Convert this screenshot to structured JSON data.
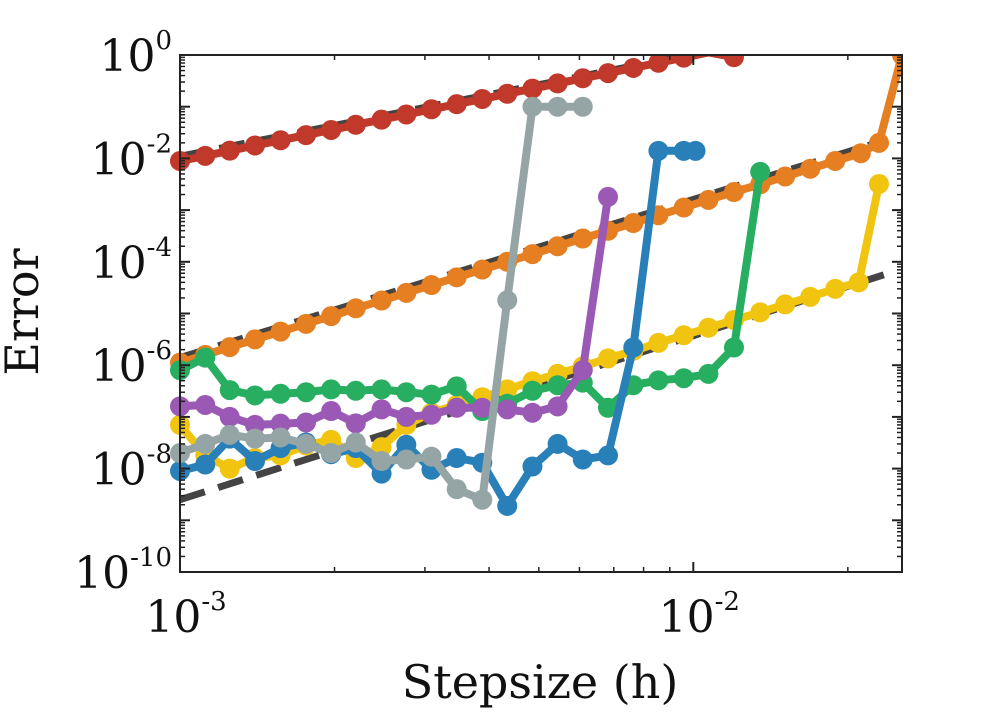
{
  "chart_data": {
    "type": "line",
    "title": "",
    "xlabel": "Stepsize (h)",
    "ylabel": "Error",
    "xscale": "log",
    "yscale": "log",
    "xlim": [
      0.001,
      0.0255
    ],
    "ylim": [
      1e-10,
      1
    ],
    "grid": false,
    "x_ticks": [
      {
        "value": 0.001,
        "base": "10",
        "exp": "-3"
      },
      {
        "value": 0.01,
        "base": "10",
        "exp": "-2"
      }
    ],
    "y_ticks": [
      {
        "value": 1e-10,
        "base": "10",
        "exp": "-10"
      },
      {
        "value": 1e-08,
        "base": "10",
        "exp": "-8"
      },
      {
        "value": 1e-06,
        "base": "10",
        "exp": "-6"
      },
      {
        "value": 0.0001,
        "base": "10",
        "exp": "-4"
      },
      {
        "value": 0.01,
        "base": "10",
        "exp": "-2"
      },
      {
        "value": 1,
        "base": "10",
        "exp": "0"
      }
    ],
    "colors": {
      "red": "#C0392B",
      "orange": "#E67E22",
      "yellow": "#F1C40F",
      "green": "#27AE60",
      "purple": "#9B59B6",
      "blue": "#2980B9",
      "gray": "#95A5A6",
      "reference": "#444444"
    },
    "series": [
      {
        "name": "red",
        "color": "#C0392B",
        "x": [
          0.001,
          0.00112,
          0.00125,
          0.0014,
          0.00157,
          0.00176,
          0.00197,
          0.0022,
          0.00247,
          0.00276,
          0.00309,
          0.00346,
          0.00388,
          0.00434,
          0.00486,
          0.00544,
          0.00609,
          0.00682,
          0.00764,
          0.00855,
          0.00958,
          0.0107,
          0.012
        ],
        "y": [
          0.00891,
          0.0112,
          0.0141,
          0.0178,
          0.0224,
          0.0282,
          0.0355,
          0.0447,
          0.0562,
          0.0708,
          0.0891,
          0.112,
          0.141,
          0.178,
          0.224,
          0.282,
          0.355,
          0.447,
          0.562,
          0.708,
          0.891,
          1.12,
          0.91
        ]
      },
      {
        "name": "orange",
        "color": "#E67E22",
        "x": [
          0.001,
          0.00112,
          0.00125,
          0.0014,
          0.00157,
          0.00176,
          0.00197,
          0.0022,
          0.00247,
          0.00276,
          0.00309,
          0.00346,
          0.00388,
          0.00434,
          0.00486,
          0.00544,
          0.00609,
          0.00682,
          0.00764,
          0.00855,
          0.00958,
          0.0107,
          0.012,
          0.0135,
          0.0151,
          0.0169,
          0.0189,
          0.0212,
          0.023,
          0.0255
        ],
        "y": [
          1.12e-06,
          1.58e-06,
          2.24e-06,
          3.16e-06,
          4.47e-06,
          6.31e-06,
          8.91e-06,
          1.26e-05,
          1.78e-05,
          2.51e-05,
          3.55e-05,
          5.01e-05,
          7.08e-05,
          0.0001,
          0.000141,
          0.0002,
          0.000282,
          0.000398,
          0.000562,
          0.000794,
          0.00112,
          0.00158,
          0.00224,
          0.00316,
          0.00447,
          0.00631,
          0.00891,
          0.0126,
          0.02,
          1.0
        ]
      },
      {
        "name": "yellow",
        "color": "#F1C40F",
        "x": [
          0.001,
          0.00112,
          0.00125,
          0.0014,
          0.00157,
          0.00176,
          0.00197,
          0.0022,
          0.00247,
          0.00276,
          0.00309,
          0.00346,
          0.00388,
          0.00434,
          0.00486,
          0.00544,
          0.00609,
          0.00682,
          0.00764,
          0.00855,
          0.00958,
          0.0107,
          0.012,
          0.0135,
          0.0151,
          0.0169,
          0.0189,
          0.021,
          0.023
        ],
        "y": [
          7e-08,
          1.8e-08,
          1e-08,
          1.6e-08,
          1.8e-08,
          2.8e-08,
          3.6e-08,
          1.6e-08,
          2.6e-08,
          7e-08,
          1.2e-07,
          1.7e-07,
          2.4e-07,
          3.4e-07,
          4.9e-07,
          6.8e-07,
          9.5e-07,
          1.35e-06,
          1.9e-06,
          2.7e-06,
          3.8e-06,
          5.3e-06,
          7.5e-06,
          1.05e-05,
          1.5e-05,
          2.1e-05,
          3e-05,
          4e-05,
          0.0032
        ]
      },
      {
        "name": "green",
        "color": "#27AE60",
        "x": [
          0.001,
          0.00112,
          0.00125,
          0.0014,
          0.00157,
          0.00176,
          0.00197,
          0.0022,
          0.00247,
          0.00276,
          0.00309,
          0.00346,
          0.00388,
          0.00434,
          0.00486,
          0.00544,
          0.00609,
          0.00682,
          0.00764,
          0.00855,
          0.00958,
          0.0107,
          0.012,
          0.0135
        ],
        "y": [
          8e-07,
          1.4e-06,
          3.3e-07,
          2.6e-07,
          2.8e-07,
          3e-07,
          3.4e-07,
          3.2e-07,
          3.4e-07,
          3e-07,
          2.7e-07,
          3.9e-07,
          1.3e-07,
          1.8e-07,
          3.2e-07,
          4.1e-07,
          4.6e-07,
          1.5e-07,
          4.1e-07,
          5.1e-07,
          5.6e-07,
          6.8e-07,
          2.2e-06,
          0.0055
        ]
      },
      {
        "name": "purple",
        "color": "#9B59B6",
        "x": [
          0.001,
          0.00112,
          0.00125,
          0.0014,
          0.00157,
          0.00176,
          0.00197,
          0.0022,
          0.00247,
          0.00276,
          0.00309,
          0.00346,
          0.00388,
          0.00434,
          0.00486,
          0.00544,
          0.00609,
          0.00682
        ],
        "y": [
          1.6e-07,
          1.7e-07,
          1e-07,
          7e-08,
          7.4e-08,
          7.8e-08,
          1.3e-07,
          7.5e-08,
          1.4e-07,
          1e-07,
          1.1e-07,
          1.5e-07,
          1.5e-07,
          1.4e-07,
          1.2e-07,
          1.6e-07,
          8e-07,
          0.0018
        ]
      },
      {
        "name": "blue",
        "color": "#2980B9",
        "x": [
          0.001,
          0.00112,
          0.00125,
          0.0014,
          0.00157,
          0.00176,
          0.00197,
          0.0022,
          0.00247,
          0.00276,
          0.00309,
          0.00346,
          0.00388,
          0.00434,
          0.00486,
          0.00544,
          0.00609,
          0.00682,
          0.00764,
          0.00855,
          0.00958,
          0.0101
        ],
        "y": [
          9e-09,
          1.2e-08,
          3.8e-08,
          1.4e-08,
          2.5e-08,
          3.2e-08,
          1.9e-08,
          2.5e-08,
          8e-09,
          2.9e-08,
          9.5e-09,
          1.6e-08,
          1.3e-08,
          1.9e-09,
          1.1e-08,
          3e-08,
          1.5e-08,
          1.8e-08,
          2.2e-06,
          0.014,
          0.014,
          0.014
        ]
      },
      {
        "name": "gray",
        "color": "#95A5A6",
        "x": [
          0.001,
          0.00112,
          0.00125,
          0.0014,
          0.00157,
          0.00176,
          0.00197,
          0.0022,
          0.00247,
          0.00276,
          0.00309,
          0.00346,
          0.00388,
          0.00434,
          0.00486,
          0.00544,
          0.00609
        ],
        "y": [
          2e-08,
          3e-08,
          4.5e-08,
          3.8e-08,
          4e-08,
          3e-08,
          2e-08,
          3.2e-08,
          1.4e-08,
          1.5e-08,
          1.7e-08,
          4e-09,
          2.5e-09,
          1.8e-05,
          0.1,
          0.1,
          0.1
        ]
      }
    ],
    "reference_lines": [
      {
        "name": "order-2-reference-red",
        "style": "dashed",
        "color": "#444444",
        "x": [
          0.001,
          0.0095
        ],
        "y": [
          0.011,
          0.95
        ]
      },
      {
        "name": "order-2-reference-orange",
        "style": "dashed",
        "color": "#444444",
        "x": [
          0.001,
          0.0235
        ],
        "y": [
          1.4e-06,
          0.022
        ]
      },
      {
        "name": "order-2-reference-yellow",
        "style": "dashed",
        "color": "#444444",
        "x": [
          0.001,
          0.0235
        ],
        "y": [
          2.5e-09,
          5.6e-05
        ]
      }
    ]
  }
}
